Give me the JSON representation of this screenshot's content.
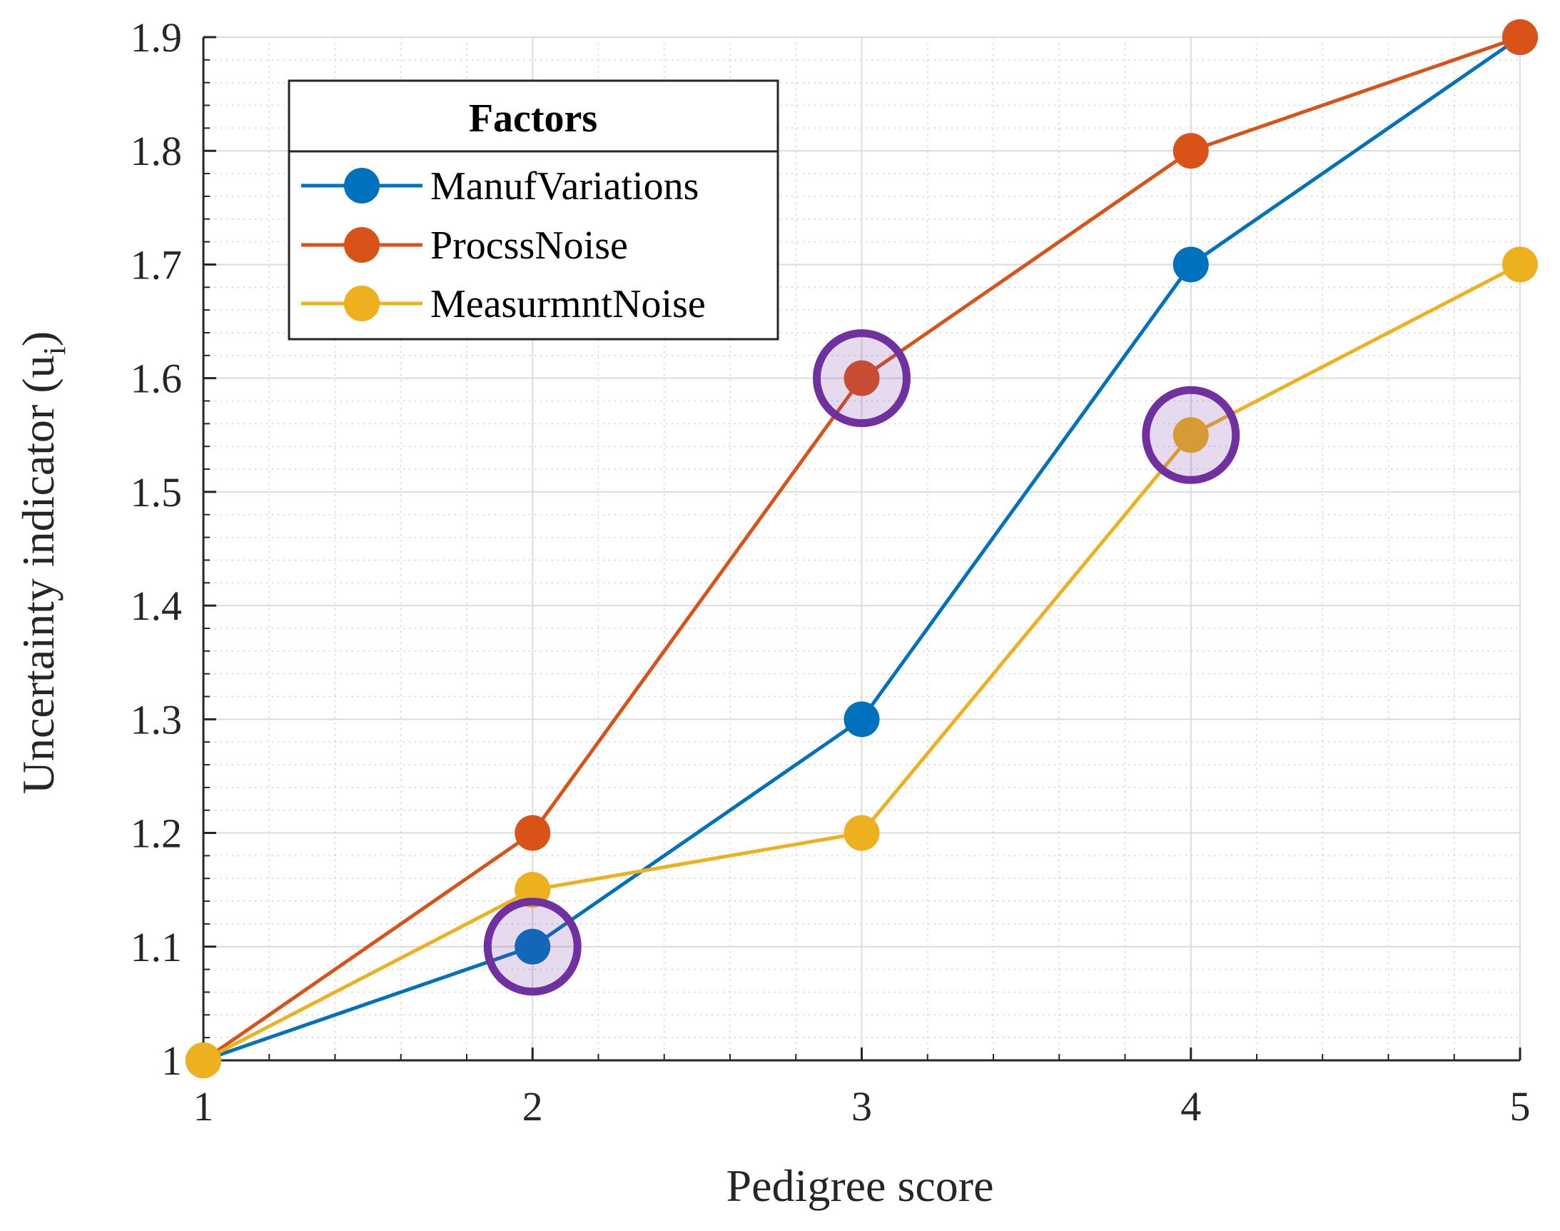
{
  "chart_data": {
    "type": "line",
    "title": "",
    "xlabel": "Pedigree score",
    "ylabel": "Uncertainty indicator (u",
    "ylabel_subscript": "i",
    "ylabel_close": ")",
    "x": [
      1,
      2,
      3,
      4,
      5
    ],
    "xlim": [
      1,
      5
    ],
    "ylim": [
      1,
      1.9
    ],
    "xticks": [
      "1",
      "2",
      "3",
      "4",
      "5"
    ],
    "yticks": [
      "1",
      "1.1",
      "1.2",
      "1.3",
      "1.4",
      "1.5",
      "1.6",
      "1.7",
      "1.8",
      "1.9"
    ],
    "grid": true,
    "minor_grid": true,
    "legend": {
      "title": "Factors",
      "placement": "top-left"
    },
    "series": [
      {
        "name": "ManufVariations",
        "color": "#0072BD",
        "values": [
          1.0,
          1.1,
          1.3,
          1.7,
          1.9
        ]
      },
      {
        "name": "ProcssNoise",
        "color": "#D95319",
        "values": [
          1.0,
          1.2,
          1.6,
          1.8,
          1.9
        ]
      },
      {
        "name": "MeasurmntNoise",
        "color": "#EDB120",
        "values": [
          1.0,
          1.15,
          1.2,
          1.55,
          1.7
        ]
      }
    ],
    "highlights": [
      {
        "series": "ManufVariations",
        "x": 2,
        "y": 1.1
      },
      {
        "series": "ProcssNoise",
        "x": 3,
        "y": 1.6
      },
      {
        "series": "MeasurmntNoise",
        "x": 4,
        "y": 1.55
      }
    ],
    "highlight_color": "#7030A0"
  }
}
